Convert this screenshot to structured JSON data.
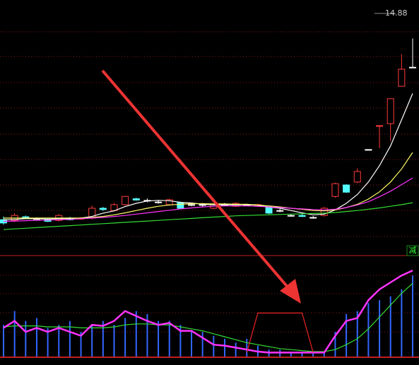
{
  "chart_data": [
    {
      "type": "candlestick",
      "open": [
        9.35,
        9.33,
        9.44,
        9.38,
        9.36,
        9.33,
        9.4,
        9.38,
        9.4,
        9.7,
        9.63,
        9.81,
        9.99,
        9.94,
        9.89,
        9.81,
        9.87,
        9.81,
        9.81,
        9.7,
        9.81,
        9.76,
        9.81,
        9.76,
        9.74,
        9.63,
        9.48,
        9.48,
        9.42,
        9.48,
        10.06,
        10.41,
        10.5,
        11.49,
        12.2,
        12.28,
        13.42,
        14.0
      ],
      "close": [
        9.25,
        9.48,
        9.4,
        9.38,
        9.3,
        9.48,
        9.35,
        9.39,
        9.7,
        9.66,
        9.81,
        10.06,
        9.95,
        9.94,
        9.89,
        9.96,
        9.7,
        9.81,
        9.81,
        9.81,
        9.81,
        9.85,
        9.81,
        9.81,
        9.55,
        9.63,
        9.48,
        9.45,
        9.42,
        9.7,
        10.45,
        10.19,
        10.82,
        11.49,
        12.22,
        13.04,
        13.94,
        14.0
      ],
      "high": [
        9.45,
        9.55,
        9.48,
        9.42,
        9.4,
        9.52,
        9.44,
        9.43,
        9.78,
        9.74,
        9.86,
        10.08,
        10.02,
        10.0,
        9.95,
        9.99,
        9.9,
        9.87,
        9.86,
        9.84,
        9.86,
        9.88,
        9.84,
        9.84,
        9.78,
        9.68,
        9.53,
        9.52,
        9.46,
        9.74,
        10.48,
        10.43,
        10.92,
        11.49,
        12.22,
        13.04,
        14.4,
        14.88
      ],
      "low": [
        9.2,
        9.28,
        9.37,
        9.35,
        9.28,
        9.3,
        9.33,
        9.35,
        9.36,
        9.62,
        9.6,
        9.78,
        9.93,
        9.88,
        9.84,
        9.78,
        9.68,
        9.76,
        9.75,
        9.67,
        9.77,
        9.74,
        9.78,
        9.74,
        9.52,
        9.58,
        9.44,
        9.43,
        9.38,
        9.45,
        10.02,
        10.17,
        10.47,
        11.49,
        11.53,
        11.75,
        13.42,
        14.0
      ],
      "up_color": "#ff3b3b",
      "down_color": "#54ffff",
      "flat_color": "#ffffff",
      "series": [
        {
          "color": "#ffffff",
          "values": [
            9.35,
            9.36,
            9.38,
            9.38,
            9.37,
            9.38,
            9.38,
            9.4,
            9.45,
            9.55,
            9.62,
            9.75,
            9.85,
            9.92,
            9.94,
            9.93,
            9.88,
            9.86,
            9.82,
            9.8,
            9.81,
            9.8,
            9.81,
            9.79,
            9.74,
            9.7,
            9.63,
            9.56,
            9.5,
            9.52,
            9.65,
            9.85,
            10.12,
            10.5,
            11.0,
            11.6,
            12.4,
            13.2
          ]
        },
        {
          "color": "#ffff66",
          "values": [
            9.4,
            9.4,
            9.4,
            9.4,
            9.4,
            9.4,
            9.4,
            9.4,
            9.42,
            9.45,
            9.5,
            9.56,
            9.63,
            9.7,
            9.76,
            9.8,
            9.82,
            9.84,
            9.84,
            9.83,
            9.83,
            9.82,
            9.82,
            9.8,
            9.77,
            9.74,
            9.7,
            9.67,
            9.63,
            9.62,
            9.65,
            9.72,
            9.82,
            9.98,
            10.2,
            10.5,
            10.9,
            11.4
          ]
        },
        {
          "color": "#ff33ff",
          "values": [
            9.3,
            9.31,
            9.32,
            9.33,
            9.34,
            9.35,
            9.36,
            9.38,
            9.4,
            9.42,
            9.45,
            9.48,
            9.52,
            9.56,
            9.6,
            9.64,
            9.68,
            9.71,
            9.74,
            9.76,
            9.77,
            9.77,
            9.77,
            9.76,
            9.74,
            9.72,
            9.7,
            9.68,
            9.66,
            9.65,
            9.67,
            9.72,
            9.8,
            9.9,
            10.05,
            10.22,
            10.42,
            10.62
          ]
        },
        {
          "color": "#33dd33",
          "values": [
            9.05,
            9.07,
            9.09,
            9.11,
            9.13,
            9.15,
            9.17,
            9.19,
            9.21,
            9.23,
            9.25,
            9.27,
            9.29,
            9.31,
            9.33,
            9.35,
            9.37,
            9.39,
            9.41,
            9.43,
            9.45,
            9.47,
            9.48,
            9.49,
            9.5,
            9.51,
            9.52,
            9.53,
            9.54,
            9.55,
            9.57,
            9.6,
            9.63,
            9.67,
            9.71,
            9.76,
            9.81,
            9.87
          ]
        }
      ],
      "ylim": [
        8.3,
        16.05
      ]
    },
    {
      "type": "indicator",
      "annotation": "减",
      "bars": {
        "color": "#3366ff",
        "values": [
          32,
          46,
          36,
          39,
          29,
          32,
          36,
          25,
          32,
          36,
          32,
          39,
          46,
          43,
          36,
          36,
          32,
          25,
          25,
          21,
          18,
          14,
          18,
          11,
          7,
          7,
          5,
          5,
          4,
          4,
          25,
          43,
          46,
          54,
          57,
          61,
          68,
          82
        ]
      },
      "series": [
        {
          "color": "#33dd33",
          "values": [
            30,
            31,
            31,
            31,
            30,
            30,
            30,
            29,
            29,
            29,
            30,
            32,
            33,
            33,
            32,
            32,
            30,
            28,
            26,
            23,
            20,
            17,
            14,
            12,
            10,
            8,
            7,
            6,
            5,
            5,
            7,
            12,
            18,
            28,
            40,
            52,
            64,
            74
          ]
        },
        {
          "color": "#ff33ff",
          "values": [
            29,
            36,
            25,
            29,
            25,
            29,
            25,
            21,
            32,
            31,
            36,
            46,
            41,
            36,
            32,
            34,
            26,
            26,
            19,
            12,
            11,
            9,
            7,
            5,
            4,
            4,
            4,
            4,
            4,
            4,
            21,
            36,
            39,
            57,
            68,
            75,
            82,
            87
          ]
        },
        {
          "color": "#ee2222",
          "values": [
            null,
            null,
            null,
            null,
            null,
            null,
            null,
            null,
            null,
            null,
            null,
            null,
            null,
            null,
            null,
            null,
            null,
            null,
            null,
            null,
            null,
            null,
            4,
            44,
            44,
            44,
            44,
            44,
            4,
            null,
            null,
            null,
            null,
            null,
            null,
            null,
            null,
            null
          ]
        }
      ],
      "ylim": [
        0,
        100
      ]
    }
  ]
}
